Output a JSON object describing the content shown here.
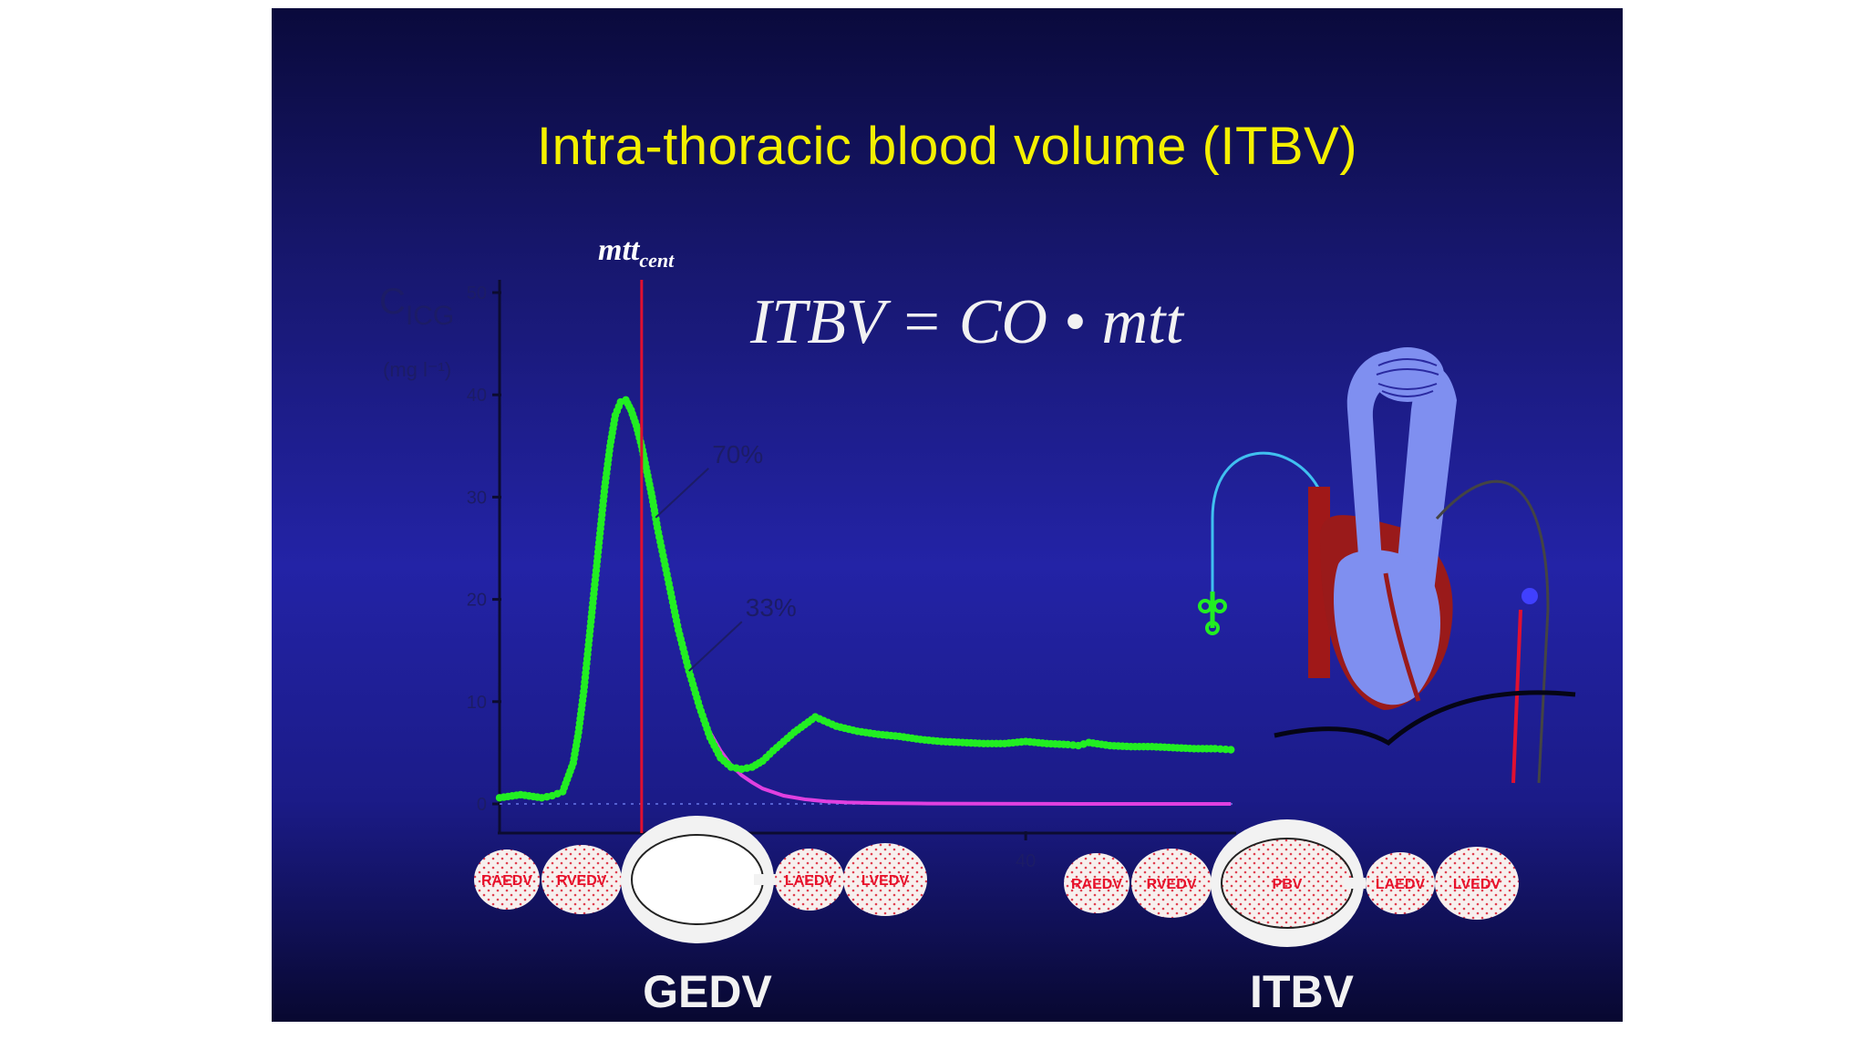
{
  "slide": {
    "title": "Intra-thoracic blood volume (ITBV)",
    "formula": "ITBV = CO • mtt",
    "mtt_label": {
      "base": "mtt",
      "sub": "cent"
    },
    "colors": {
      "title": "#f4f000",
      "indicator_curve": "#22ee22",
      "fit_curve": "#e040e0",
      "mtt_marker": "#e01030",
      "compartment_text": "#e8102a"
    },
    "footer": {
      "left": "GEDV",
      "right": "ITBV"
    },
    "compartments": {
      "gedv": [
        "RAEDV",
        "RVEDV",
        "",
        "LAEDV",
        "LVEDV"
      ],
      "itbv": [
        "RAEDV",
        "RVEDV",
        "PBV",
        "LAEDV",
        "LVEDV"
      ]
    },
    "illustration": "heart-lung-circulation-icon"
  },
  "chart_data": {
    "type": "line",
    "y_symbol": {
      "base": "C",
      "sub": "ICG"
    },
    "y_unit": "(mg l⁻¹)",
    "ylim": [
      0,
      50
    ],
    "yticks": [
      0,
      10,
      20,
      30,
      40,
      50
    ],
    "xlim": [
      0,
      70
    ],
    "xtick_labels": [
      {
        "x": 50,
        "label": "40"
      }
    ],
    "mtt_x": 13.5,
    "annotations": [
      {
        "text": "70%",
        "y": 28
      },
      {
        "text": "33%",
        "y": 13
      }
    ],
    "series": [
      {
        "role": "indicator_dilution",
        "x": [
          0,
          2,
          4,
          5,
          6,
          7,
          7.5,
          8,
          8.5,
          9,
          9.5,
          10,
          10.5,
          11,
          11.5,
          12,
          12.5,
          13,
          13.5,
          14,
          14.5,
          15,
          16,
          17,
          18,
          19,
          20,
          21,
          22,
          23,
          24,
          25,
          26,
          28,
          30,
          32,
          34,
          36,
          38,
          40,
          42,
          44,
          46,
          48,
          50,
          52,
          54,
          55,
          56,
          58,
          60,
          62,
          64,
          66,
          68,
          69.5
        ],
        "y": [
          0.6,
          0.9,
          0.6,
          0.8,
          1.2,
          4,
          7,
          11,
          16,
          21,
          26,
          31,
          35,
          38,
          39.3,
          39.5,
          38.5,
          37,
          35,
          32.5,
          30,
          27,
          22,
          17,
          13,
          9.5,
          6.5,
          4.5,
          3.6,
          3.4,
          3.6,
          4.2,
          5.2,
          7,
          8.5,
          7.6,
          7.1,
          6.8,
          6.6,
          6.3,
          6.1,
          6.0,
          5.9,
          5.9,
          6.1,
          5.9,
          5.8,
          5.7,
          6.0,
          5.7,
          5.6,
          5.6,
          5.5,
          5.4,
          5.4,
          5.3
        ]
      },
      {
        "role": "exponential_fit",
        "x": [
          14.5,
          15,
          16,
          17,
          18,
          19,
          20,
          21,
          22,
          23,
          24,
          25,
          27,
          29,
          31,
          33,
          36,
          40,
          45,
          50,
          55,
          60,
          65,
          69.5
        ],
        "y": [
          30,
          27,
          22,
          17,
          13,
          9.5,
          7,
          5.2,
          3.8,
          2.8,
          2.1,
          1.5,
          0.8,
          0.45,
          0.25,
          0.15,
          0.08,
          0.04,
          0.02,
          0.01,
          0,
          0,
          0,
          0
        ]
      }
    ]
  }
}
